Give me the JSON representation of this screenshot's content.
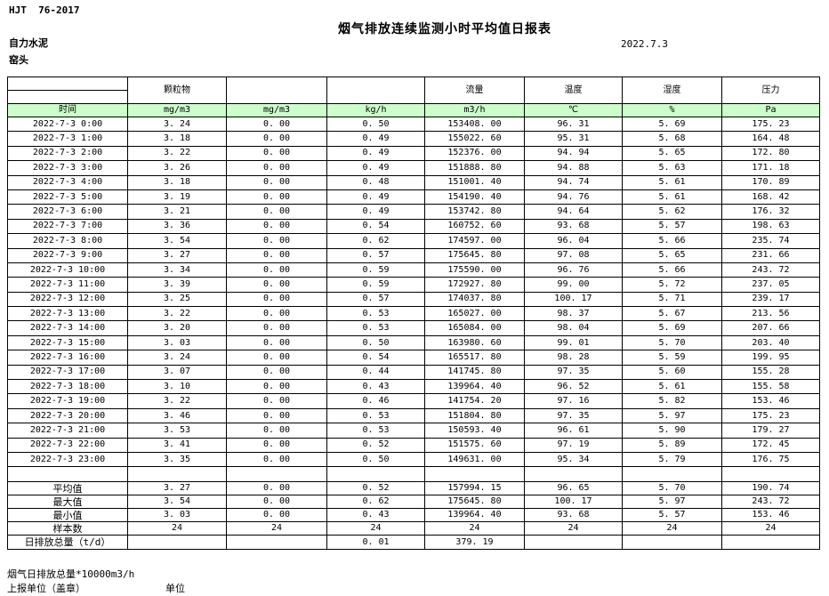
{
  "header": {
    "standard": "HJT  76-2017",
    "title": "烟气排放连续监测小时平均值日报表",
    "company": "自力水泥",
    "station": "窑头",
    "date": "2022.7.3"
  },
  "table": {
    "time_label": "时间",
    "pollutant_headers": [
      "颗粒物",
      "",
      "",
      "流量",
      "温度",
      "湿度",
      "压力"
    ],
    "units": [
      "mg/m3",
      "mg/m3",
      "kg/h",
      "m3/h",
      "℃",
      "%",
      "Pa"
    ],
    "rows": [
      {
        "time": "2022-7-3 0:00",
        "values": [
          "3.24",
          "0.00",
          "0.50",
          "153408.00",
          "96.31",
          "5.69",
          "175.23"
        ]
      },
      {
        "time": "2022-7-3 1:00",
        "values": [
          "3.18",
          "0.00",
          "0.49",
          "155022.60",
          "95.31",
          "5.68",
          "164.48"
        ]
      },
      {
        "time": "2022-7-3 2:00",
        "values": [
          "3.22",
          "0.00",
          "0.49",
          "152376.00",
          "94.94",
          "5.65",
          "172.80"
        ]
      },
      {
        "time": "2022-7-3 3:00",
        "values": [
          "3.26",
          "0.00",
          "0.49",
          "151888.80",
          "94.88",
          "5.63",
          "171.18"
        ]
      },
      {
        "time": "2022-7-3 4:00",
        "values": [
          "3.18",
          "0.00",
          "0.48",
          "151001.40",
          "94.74",
          "5.61",
          "170.89"
        ]
      },
      {
        "time": "2022-7-3 5:00",
        "values": [
          "3.19",
          "0.00",
          "0.49",
          "154190.40",
          "94.76",
          "5.61",
          "168.42"
        ]
      },
      {
        "time": "2022-7-3 6:00",
        "values": [
          "3.21",
          "0.00",
          "0.49",
          "153742.80",
          "94.64",
          "5.62",
          "176.32"
        ]
      },
      {
        "time": "2022-7-3 7:00",
        "values": [
          "3.36",
          "0.00",
          "0.54",
          "160752.60",
          "93.68",
          "5.57",
          "198.63"
        ]
      },
      {
        "time": "2022-7-3 8:00",
        "values": [
          "3.54",
          "0.00",
          "0.62",
          "174597.00",
          "96.04",
          "5.66",
          "235.74"
        ]
      },
      {
        "time": "2022-7-3 9:00",
        "values": [
          "3.27",
          "0.00",
          "0.57",
          "175645.80",
          "97.08",
          "5.65",
          "231.66"
        ]
      },
      {
        "time": "2022-7-3 10:00",
        "values": [
          "3.34",
          "0.00",
          "0.59",
          "175590.00",
          "96.76",
          "5.66",
          "243.72"
        ]
      },
      {
        "time": "2022-7-3 11:00",
        "values": [
          "3.39",
          "0.00",
          "0.59",
          "172927.80",
          "99.00",
          "5.72",
          "237.05"
        ]
      },
      {
        "time": "2022-7-3 12:00",
        "values": [
          "3.25",
          "0.00",
          "0.57",
          "174037.80",
          "100.17",
          "5.71",
          "239.17"
        ]
      },
      {
        "time": "2022-7-3 13:00",
        "values": [
          "3.22",
          "0.00",
          "0.53",
          "165027.00",
          "98.37",
          "5.67",
          "213.56"
        ]
      },
      {
        "time": "2022-7-3 14:00",
        "values": [
          "3.20",
          "0.00",
          "0.53",
          "165084.00",
          "98.04",
          "5.69",
          "207.66"
        ]
      },
      {
        "time": "2022-7-3 15:00",
        "values": [
          "3.03",
          "0.00",
          "0.50",
          "163980.60",
          "99.01",
          "5.70",
          "203.40"
        ]
      },
      {
        "time": "2022-7-3 16:00",
        "values": [
          "3.24",
          "0.00",
          "0.54",
          "165517.80",
          "98.28",
          "5.59",
          "199.95"
        ]
      },
      {
        "time": "2022-7-3 17:00",
        "values": [
          "3.07",
          "0.00",
          "0.44",
          "141745.80",
          "97.35",
          "5.60",
          "155.28"
        ]
      },
      {
        "time": "2022-7-3 18:00",
        "values": [
          "3.10",
          "0.00",
          "0.43",
          "139964.40",
          "96.52",
          "5.61",
          "155.58"
        ]
      },
      {
        "time": "2022-7-3 19:00",
        "values": [
          "3.22",
          "0.00",
          "0.46",
          "141754.20",
          "97.16",
          "5.82",
          "153.46"
        ]
      },
      {
        "time": "2022-7-3 20:00",
        "values": [
          "3.46",
          "0.00",
          "0.53",
          "151804.80",
          "97.35",
          "5.97",
          "175.23"
        ]
      },
      {
        "time": "2022-7-3 21:00",
        "values": [
          "3.53",
          "0.00",
          "0.53",
          "150593.40",
          "96.61",
          "5.90",
          "179.27"
        ]
      },
      {
        "time": "2022-7-3 22:00",
        "values": [
          "3.41",
          "0.00",
          "0.52",
          "151575.60",
          "97.19",
          "5.89",
          "172.45"
        ]
      },
      {
        "time": "2022-7-3 23:00",
        "values": [
          "3.35",
          "0.00",
          "0.50",
          "149631.00",
          "95.34",
          "5.79",
          "176.75"
        ]
      }
    ],
    "summary": [
      {
        "label": "平均值",
        "align": "center",
        "values": [
          "3.27",
          "0.00",
          "0.52",
          "157994.15",
          "96.65",
          "5.70",
          "190.74"
        ]
      },
      {
        "label": "最大值",
        "align": "center",
        "values": [
          "3.54",
          "0.00",
          "0.62",
          "175645.80",
          "100.17",
          "5.97",
          "243.72"
        ]
      },
      {
        "label": "最小值",
        "align": "center",
        "values": [
          "3.03",
          "0.00",
          "0.43",
          "139964.40",
          "93.68",
          "5.57",
          "153.46"
        ]
      },
      {
        "label": "样本数",
        "align": "center",
        "values": [
          "24",
          "24",
          "24",
          "24",
          "24",
          "24",
          "24"
        ]
      },
      {
        "label": "日排放总量（t/d）",
        "align": "left",
        "values": [
          "",
          "",
          "0.01",
          "379.19",
          "",
          "",
          ""
        ]
      }
    ]
  },
  "footer": {
    "note_flow": "烟气日排放总量*10000m3/h",
    "report_unit": "上报单位（盖章）",
    "unit": "单位"
  },
  "colors": {
    "unit_row_bg": "#ccffcc",
    "border": "#000000",
    "text": "#000000",
    "background": "#ffffff"
  }
}
